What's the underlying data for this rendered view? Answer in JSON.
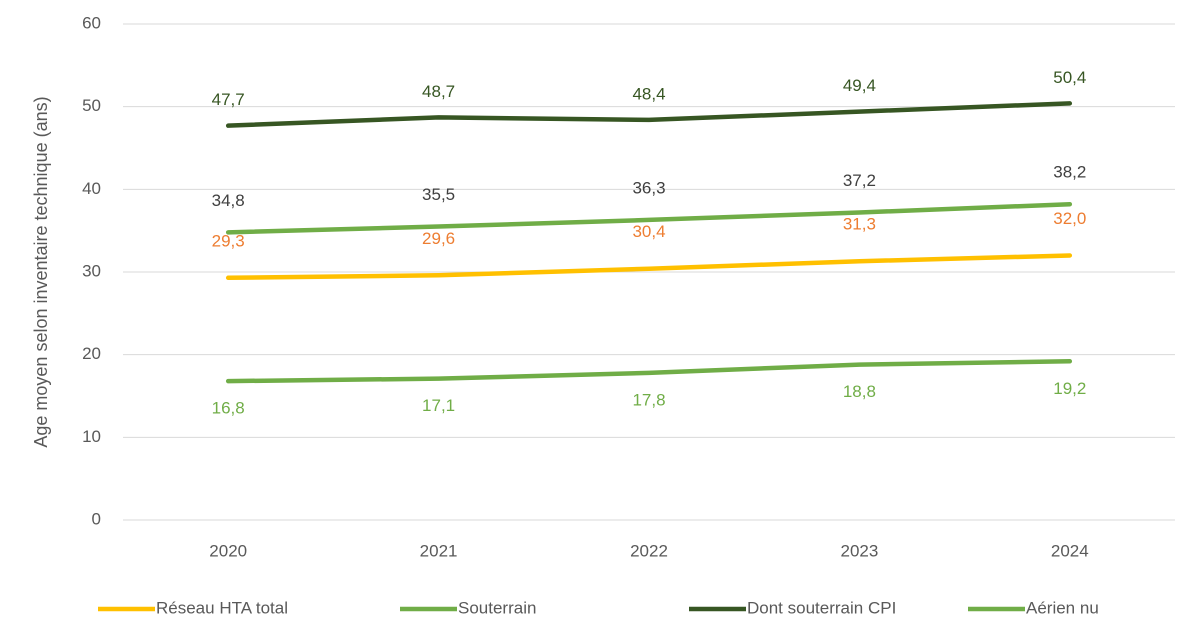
{
  "chart_data": {
    "type": "line",
    "y_label": "Age moyen selon inventaire technique (ans)",
    "categories": [
      "2020",
      "2021",
      "2022",
      "2023",
      "2024"
    ],
    "ylim": [
      0,
      60
    ],
    "yticks": [
      0,
      10,
      20,
      30,
      40,
      50,
      60
    ],
    "grid": true,
    "legend": "bottom",
    "series": [
      {
        "name": "Réseau HTA total",
        "color": "#ffc000",
        "label_color": "#ed7d31",
        "values": [
          29.3,
          29.6,
          30.4,
          31.3,
          32.0
        ],
        "value_labels": [
          "29,3",
          "29,6",
          "30,4",
          "31,3",
          "32,0"
        ]
      },
      {
        "name": "Souterrain",
        "color": "#70ad47",
        "label_color": "#404040",
        "values": [
          34.8,
          35.5,
          36.3,
          37.2,
          38.2
        ],
        "value_labels": [
          "34,8",
          "35,5",
          "36,3",
          "37,2",
          "38,2"
        ]
      },
      {
        "name": "Dont souterrain CPI",
        "color": "#375623",
        "label_color": "#375623",
        "values": [
          47.7,
          48.7,
          48.4,
          49.4,
          50.4
        ],
        "value_labels": [
          "47,7",
          "48,7",
          "48,4",
          "49,4",
          "50,4"
        ]
      },
      {
        "name": "Aérien nu",
        "color": "#70ad47",
        "label_color": "#70ad47",
        "values": [
          16.8,
          17.1,
          17.8,
          18.8,
          19.2
        ],
        "value_labels": [
          "16,8",
          "17,1",
          "17,8",
          "18,8",
          "19,2"
        ]
      }
    ]
  }
}
